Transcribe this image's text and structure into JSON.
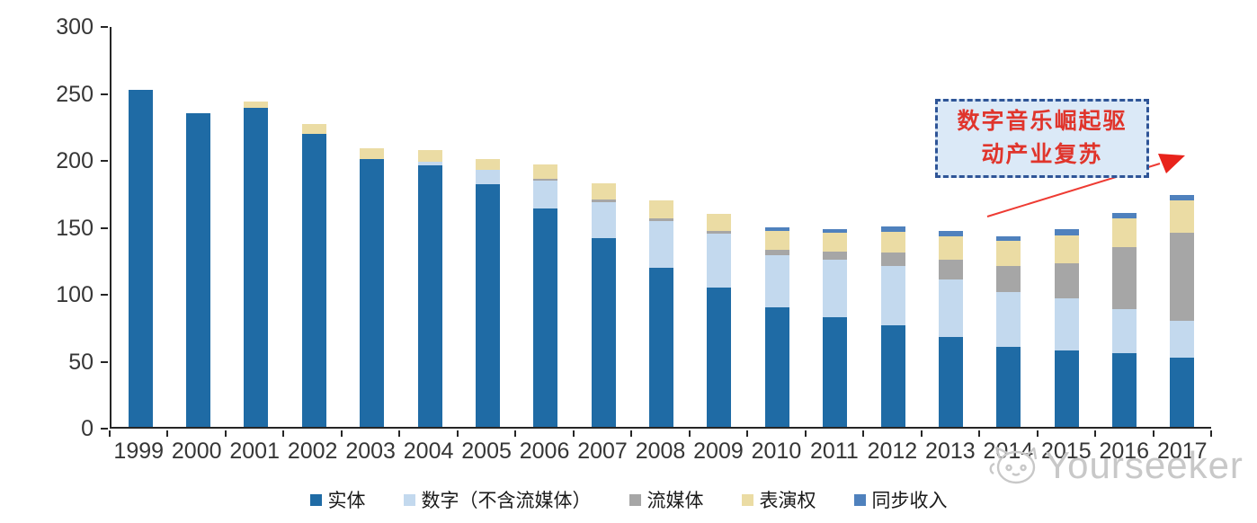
{
  "watermark": {
    "brand": "Yourseeker"
  },
  "annotation": {
    "line1": "数字音乐崛起驱",
    "line2": "动产业复苏"
  },
  "axis_color": "#262626",
  "chart_data": {
    "type": "bar",
    "stacked": true,
    "title": "",
    "xlabel": "",
    "ylabel": "",
    "categories": [
      "1999",
      "2000",
      "2001",
      "2002",
      "2003",
      "2004",
      "2005",
      "2006",
      "2007",
      "2008",
      "2009",
      "2010",
      "2011",
      "2012",
      "2013",
      "2014",
      "2015",
      "2016",
      "2017"
    ],
    "series": [
      {
        "name": "实体",
        "color": "#1F6BA5",
        "values": [
          252,
          234,
          238,
          219,
          200,
          195,
          181,
          163,
          141,
          119,
          104,
          89,
          82,
          76,
          67,
          60,
          57,
          55,
          52
        ]
      },
      {
        "name": "数字（不含流媒体）",
        "color": "#C3D9EE",
        "values": [
          0,
          0,
          0,
          0,
          0,
          3,
          11,
          21,
          27,
          35,
          40,
          39,
          43,
          44,
          43,
          41,
          39,
          33,
          27
        ]
      },
      {
        "name": "流媒体",
        "color": "#A6A6A6",
        "values": [
          0,
          0,
          0,
          0,
          0,
          0,
          0,
          1,
          2,
          2,
          2,
          4,
          6,
          10,
          15,
          19,
          26,
          46,
          66
        ]
      },
      {
        "name": "表演权",
        "color": "#EBDCA4",
        "values": [
          0,
          0,
          5,
          7,
          8,
          9,
          8,
          11,
          12,
          13,
          13,
          14,
          14,
          16,
          17,
          19,
          21,
          22,
          24
        ]
      },
      {
        "name": "同步收入",
        "color": "#4F81BD",
        "values": [
          0,
          0,
          0,
          0,
          0,
          0,
          0,
          0,
          0,
          0,
          0,
          3,
          3,
          4,
          4,
          3,
          5,
          4,
          4
        ]
      }
    ],
    "totals": [
      252,
      234,
      243,
      226,
      208,
      207,
      200,
      196,
      182,
      169,
      159,
      149,
      148,
      150,
      146,
      142,
      148,
      160,
      173
    ],
    "ylim": [
      0,
      300
    ],
    "yticks": [
      0,
      50,
      100,
      150,
      200,
      250,
      300
    ],
    "grid": false,
    "legend_position": "bottom"
  }
}
